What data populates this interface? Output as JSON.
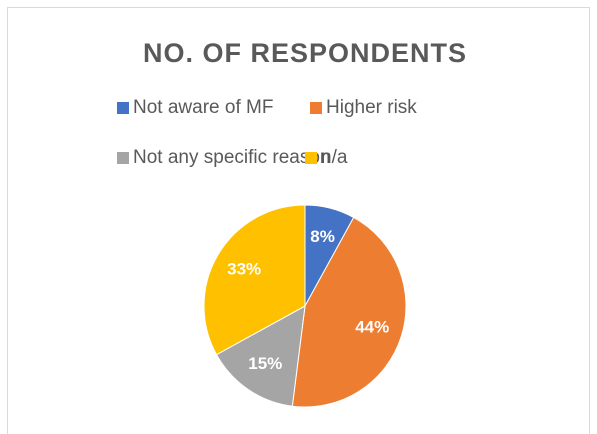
{
  "chart_data": {
    "type": "pie",
    "title": "NO. OF RESPONDENTS",
    "categories": [
      "Not aware of MF",
      "Higher risk",
      "Not any specific reason",
      "n/a"
    ],
    "values": [
      8,
      44,
      15,
      33
    ],
    "value_labels": [
      "8%",
      "44%",
      "15%",
      "33%"
    ],
    "colors": [
      "#4472c4",
      "#ed7d31",
      "#a5a5a5",
      "#ffc000"
    ],
    "legend": "top"
  }
}
